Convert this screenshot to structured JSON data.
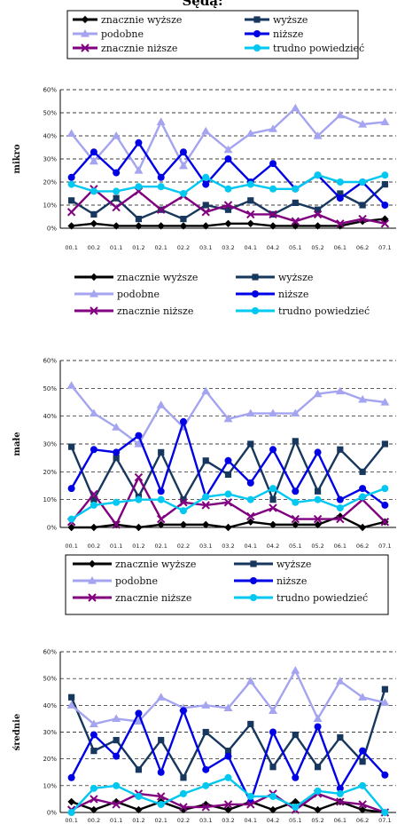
{
  "page": {
    "title": "Sędą:"
  },
  "legend_labels": [
    "znacznie wyższe",
    "wyższe",
    "podobne",
    "niższe",
    "znacznie niższe",
    "trudno powiedzieć"
  ],
  "series_styles": [
    {
      "color": "#000000",
      "marker": "diamond"
    },
    {
      "color": "#17375e",
      "marker": "square"
    },
    {
      "color": "#a4a4f0",
      "marker": "triangle"
    },
    {
      "color": "#0000e6",
      "marker": "circle"
    },
    {
      "color": "#800080",
      "marker": "x"
    },
    {
      "color": "#00c8f0",
      "marker": "circle"
    }
  ],
  "chart_data": [
    {
      "type": "line",
      "ylabel": "mikro",
      "ylim": [
        0,
        60
      ],
      "yticks": [
        "0%",
        "10%",
        "20%",
        "30%",
        "40%",
        "50%",
        "60%"
      ],
      "grid": "dashed horizontal",
      "categories": [
        "00.1",
        "00.2",
        "01.1",
        "01.2",
        "02.1",
        "02.2",
        "03.1",
        "03.2",
        "04.1",
        "04.2",
        "05.1",
        "05.2",
        "06.1",
        "06.2",
        "07.1"
      ],
      "series": [
        {
          "name": "znacznie wyższe",
          "values": [
            1,
            2,
            1,
            1,
            1,
            1,
            1,
            2,
            2,
            1,
            1,
            1,
            1,
            3,
            4
          ]
        },
        {
          "name": "wyższe",
          "values": [
            12,
            6,
            13,
            4,
            8,
            4,
            10,
            8,
            12,
            6,
            11,
            8,
            15,
            10,
            19
          ]
        },
        {
          "name": "podobne",
          "values": [
            41,
            29,
            40,
            25,
            46,
            27,
            42,
            34,
            41,
            43,
            52,
            40,
            49,
            45,
            46
          ]
        },
        {
          "name": "niższe",
          "values": [
            22,
            33,
            24,
            37,
            22,
            33,
            19,
            30,
            20,
            28,
            17,
            23,
            13,
            20,
            10
          ]
        },
        {
          "name": "znacznie niższe",
          "values": [
            7,
            17,
            9,
            16,
            8,
            14,
            7,
            10,
            6,
            6,
            3,
            6,
            2,
            4,
            2
          ]
        },
        {
          "name": "trudno powiedzieć",
          "values": [
            19,
            16,
            16,
            18,
            18,
            15,
            22,
            17,
            19,
            17,
            17,
            23,
            20,
            20,
            23
          ]
        }
      ]
    },
    {
      "type": "line",
      "ylabel": "małe",
      "ylim": [
        0,
        60
      ],
      "yticks": [
        "0%",
        "10%",
        "20%",
        "30%",
        "40%",
        "50%",
        "60%"
      ],
      "grid": "dashed horizontal",
      "categories": [
        "00.1",
        "00.2",
        "01.1",
        "01.2",
        "02.1",
        "02.2",
        "03.1",
        "03.2",
        "04.1",
        "04.2",
        "05.1",
        "05.2",
        "06.1",
        "06.2",
        "07.1"
      ],
      "series": [
        {
          "name": "znacznie wyższe",
          "values": [
            0,
            0,
            1,
            0,
            1,
            1,
            1,
            0,
            2,
            1,
            1,
            1,
            4,
            0,
            2
          ]
        },
        {
          "name": "wyższe",
          "values": [
            29,
            10,
            25,
            11,
            27,
            10,
            24,
            19,
            30,
            10,
            31,
            13,
            28,
            20,
            30
          ]
        },
        {
          "name": "podobne",
          "values": [
            51,
            41,
            36,
            30,
            44,
            36,
            49,
            39,
            41,
            41,
            41,
            48,
            49,
            46,
            45
          ]
        },
        {
          "name": "niższe",
          "values": [
            14,
            28,
            27,
            33,
            13,
            38,
            11,
            24,
            16,
            28,
            13,
            27,
            10,
            14,
            8
          ]
        },
        {
          "name": "znacznie niższe",
          "values": [
            2,
            12,
            1,
            18,
            3,
            9,
            8,
            9,
            4,
            7,
            3,
            3,
            3,
            10,
            2
          ]
        },
        {
          "name": "trudno powiedzieć",
          "values": [
            3,
            8,
            9,
            10,
            10,
            6,
            11,
            12,
            10,
            14,
            9,
            10,
            7,
            11,
            14
          ]
        }
      ]
    },
    {
      "type": "line",
      "ylabel": "średnie",
      "ylim": [
        0,
        60
      ],
      "yticks": [
        "0%",
        "10%",
        "20%",
        "30%",
        "40%",
        "50%",
        "60%"
      ],
      "grid": "dashed horizontal",
      "categories": [
        "00.1",
        "00.2",
        "01.1",
        "01.2",
        "02.1",
        "02.2",
        "03.1",
        "03.2",
        "04.1",
        "04.2",
        "05.1",
        "05.2",
        "06.1",
        "06.2",
        "07.1"
      ],
      "series": [
        {
          "name": "znacznie wyższe",
          "values": [
            4,
            1,
            4,
            1,
            4,
            1,
            3,
            1,
            4,
            1,
            4,
            1,
            4,
            1,
            0
          ]
        },
        {
          "name": "wyższe",
          "values": [
            43,
            23,
            27,
            16,
            27,
            13,
            30,
            23,
            33,
            17,
            29,
            17,
            28,
            19,
            46
          ]
        },
        {
          "name": "podobne",
          "values": [
            40,
            33,
            35,
            34,
            43,
            39,
            40,
            39,
            49,
            38,
            53,
            35,
            49,
            43,
            41
          ]
        },
        {
          "name": "niższe",
          "values": [
            13,
            29,
            21,
            37,
            15,
            38,
            16,
            21,
            4,
            30,
            13,
            32,
            9,
            23,
            14
          ]
        },
        {
          "name": "znacznie niższe",
          "values": [
            1,
            5,
            3,
            7,
            6,
            2,
            2,
            3,
            3,
            7,
            1,
            7,
            4,
            3,
            0
          ]
        },
        {
          "name": "trudno powiedzieć",
          "values": [
            0,
            9,
            10,
            6,
            3,
            7,
            10,
            13,
            6,
            6,
            2,
            8,
            7,
            10,
            0
          ]
        }
      ]
    }
  ]
}
